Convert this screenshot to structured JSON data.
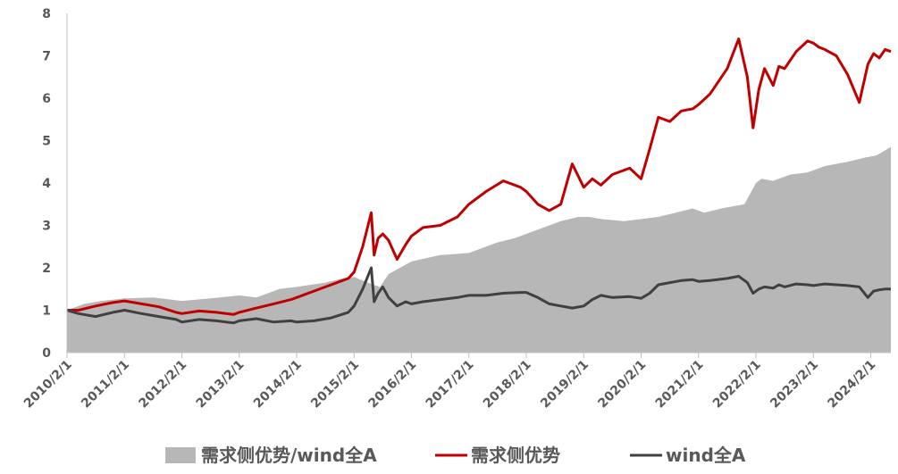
{
  "chart_data": {
    "type": "line",
    "title": "",
    "xlabel": "",
    "ylabel": "",
    "ylim": [
      0,
      8
    ],
    "yticks": [
      0,
      1,
      2,
      3,
      4,
      5,
      6,
      7,
      8
    ],
    "xlim": [
      2010.0,
      2024.35
    ],
    "xtick_labels": [
      "2010/2/1",
      "2011/2/1",
      "2012/2/1",
      "2013/2/1",
      "2014/2/1",
      "2015/2/1",
      "2016/2/1",
      "2017/2/1",
      "2018/2/1",
      "2019/2/1",
      "2020/2/1",
      "2021/2/1",
      "2022/2/1",
      "2023/2/1",
      "2024/2/1"
    ],
    "xtick_values": [
      2010,
      2011,
      2012,
      2013,
      2014,
      2015,
      2016,
      2017,
      2018,
      2019,
      2020,
      2021,
      2022,
      2023,
      2024
    ],
    "grid": false,
    "legend_position": "bottom",
    "series": [
      {
        "name": "需求侧优势/wind全A",
        "kind": "area",
        "color": "#b7b7b7",
        "x": [
          2010.0,
          2010.3,
          2010.6,
          2011.0,
          2011.5,
          2012.0,
          2012.5,
          2013.0,
          2013.3,
          2013.7,
          2014.0,
          2014.5,
          2014.8,
          2015.0,
          2015.3,
          2015.45,
          2015.6,
          2015.8,
          2016.0,
          2016.5,
          2017.0,
          2017.5,
          2017.8,
          2018.0,
          2018.3,
          2018.6,
          2018.9,
          2019.1,
          2019.3,
          2019.7,
          2020.0,
          2020.3,
          2020.6,
          2020.9,
          2021.1,
          2021.4,
          2021.8,
          2022.0,
          2022.1,
          2022.3,
          2022.6,
          2022.9,
          2023.2,
          2023.6,
          2023.9,
          2024.1,
          2024.35
        ],
        "values": [
          1.0,
          1.15,
          1.22,
          1.28,
          1.3,
          1.22,
          1.28,
          1.35,
          1.3,
          1.5,
          1.55,
          1.65,
          1.75,
          1.78,
          1.62,
          1.55,
          1.85,
          2.0,
          2.15,
          2.3,
          2.35,
          2.6,
          2.7,
          2.8,
          2.95,
          3.1,
          3.2,
          3.2,
          3.15,
          3.1,
          3.15,
          3.2,
          3.3,
          3.4,
          3.3,
          3.4,
          3.5,
          4.0,
          4.1,
          4.05,
          4.2,
          4.25,
          4.4,
          4.5,
          4.6,
          4.65,
          4.85
        ]
      },
      {
        "name": "需求侧优势",
        "kind": "line",
        "color": "#c00000",
        "x": [
          2010.0,
          2010.2,
          2010.5,
          2010.8,
          2011.0,
          2011.3,
          2011.6,
          2011.9,
          2012.0,
          2012.3,
          2012.6,
          2012.9,
          2013.0,
          2013.3,
          2013.6,
          2013.9,
          2014.0,
          2014.3,
          2014.6,
          2014.9,
          2015.0,
          2015.15,
          2015.3,
          2015.35,
          2015.42,
          2015.5,
          2015.6,
          2015.75,
          2015.9,
          2016.0,
          2016.2,
          2016.5,
          2016.8,
          2017.0,
          2017.3,
          2017.6,
          2017.9,
          2018.0,
          2018.2,
          2018.4,
          2018.6,
          2018.8,
          2019.0,
          2019.15,
          2019.3,
          2019.5,
          2019.8,
          2020.0,
          2020.15,
          2020.3,
          2020.5,
          2020.7,
          2020.9,
          2021.0,
          2021.2,
          2021.5,
          2021.7,
          2021.85,
          2021.95,
          2022.05,
          2022.15,
          2022.3,
          2022.4,
          2022.5,
          2022.7,
          2022.9,
          2023.0,
          2023.1,
          2023.2,
          2023.4,
          2023.6,
          2023.8,
          2023.95,
          2024.05,
          2024.15,
          2024.25,
          2024.35
        ],
        "values": [
          1.0,
          1.0,
          1.1,
          1.18,
          1.22,
          1.15,
          1.08,
          0.95,
          0.92,
          0.98,
          0.95,
          0.9,
          0.95,
          1.05,
          1.15,
          1.25,
          1.3,
          1.45,
          1.6,
          1.75,
          1.9,
          2.5,
          3.3,
          2.3,
          2.7,
          2.8,
          2.65,
          2.2,
          2.55,
          2.75,
          2.95,
          3.0,
          3.2,
          3.5,
          3.8,
          4.05,
          3.9,
          3.8,
          3.5,
          3.35,
          3.5,
          4.45,
          3.9,
          4.1,
          3.95,
          4.2,
          4.35,
          4.1,
          4.8,
          5.55,
          5.45,
          5.7,
          5.75,
          5.85,
          6.1,
          6.7,
          7.4,
          6.5,
          5.3,
          6.2,
          6.7,
          6.3,
          6.75,
          6.7,
          7.1,
          7.35,
          7.3,
          7.2,
          7.15,
          7.0,
          6.55,
          5.9,
          6.8,
          7.05,
          6.95,
          7.15,
          7.1
        ]
      },
      {
        "name": "wind全A",
        "kind": "line",
        "color": "#404040",
        "x": [
          2010.0,
          2010.2,
          2010.5,
          2010.8,
          2011.0,
          2011.3,
          2011.6,
          2011.9,
          2012.0,
          2012.3,
          2012.6,
          2012.9,
          2013.0,
          2013.3,
          2013.6,
          2013.9,
          2014.0,
          2014.3,
          2014.6,
          2014.9,
          2015.0,
          2015.15,
          2015.3,
          2015.35,
          2015.42,
          2015.5,
          2015.6,
          2015.75,
          2015.9,
          2016.0,
          2016.2,
          2016.5,
          2016.8,
          2017.0,
          2017.3,
          2017.6,
          2017.9,
          2018.0,
          2018.2,
          2018.4,
          2018.6,
          2018.8,
          2019.0,
          2019.15,
          2019.3,
          2019.5,
          2019.8,
          2020.0,
          2020.15,
          2020.3,
          2020.5,
          2020.7,
          2020.9,
          2021.0,
          2021.2,
          2021.5,
          2021.7,
          2021.85,
          2021.95,
          2022.05,
          2022.15,
          2022.3,
          2022.4,
          2022.5,
          2022.7,
          2022.9,
          2023.0,
          2023.1,
          2023.2,
          2023.4,
          2023.6,
          2023.8,
          2023.95,
          2024.05,
          2024.15,
          2024.25,
          2024.35
        ],
        "values": [
          1.0,
          0.92,
          0.85,
          0.95,
          1.0,
          0.92,
          0.85,
          0.78,
          0.72,
          0.78,
          0.75,
          0.7,
          0.75,
          0.8,
          0.72,
          0.75,
          0.72,
          0.75,
          0.82,
          0.95,
          1.1,
          1.5,
          2.0,
          1.2,
          1.4,
          1.55,
          1.3,
          1.1,
          1.2,
          1.15,
          1.2,
          1.25,
          1.3,
          1.35,
          1.35,
          1.4,
          1.42,
          1.42,
          1.3,
          1.15,
          1.1,
          1.05,
          1.1,
          1.25,
          1.35,
          1.3,
          1.32,
          1.28,
          1.4,
          1.6,
          1.65,
          1.7,
          1.72,
          1.68,
          1.7,
          1.75,
          1.8,
          1.65,
          1.4,
          1.5,
          1.55,
          1.52,
          1.6,
          1.55,
          1.62,
          1.6,
          1.58,
          1.6,
          1.62,
          1.6,
          1.58,
          1.55,
          1.3,
          1.45,
          1.48,
          1.5,
          1.5
        ]
      }
    ]
  }
}
